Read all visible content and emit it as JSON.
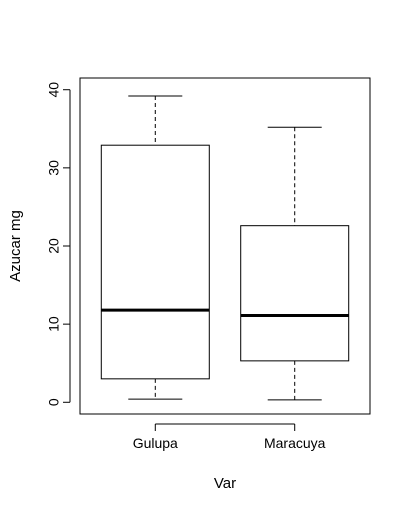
{
  "chart_data": {
    "type": "boxplot",
    "title": "",
    "xlabel": "Var",
    "ylabel": "Azucar mg",
    "ylim": [
      -1.5,
      41.5
    ],
    "yticks": [
      0,
      10,
      20,
      30,
      40
    ],
    "grid": false,
    "categories": [
      "Gulupa",
      "Maracuya"
    ],
    "boxes": [
      {
        "category": "Gulupa",
        "min": 0.4,
        "q1": 3.0,
        "median": 11.8,
        "q3": 32.9,
        "max": 39.2
      },
      {
        "category": "Maracuya",
        "min": 0.3,
        "q1": 5.3,
        "median": 11.1,
        "q3": 22.6,
        "max": 35.2
      }
    ]
  }
}
